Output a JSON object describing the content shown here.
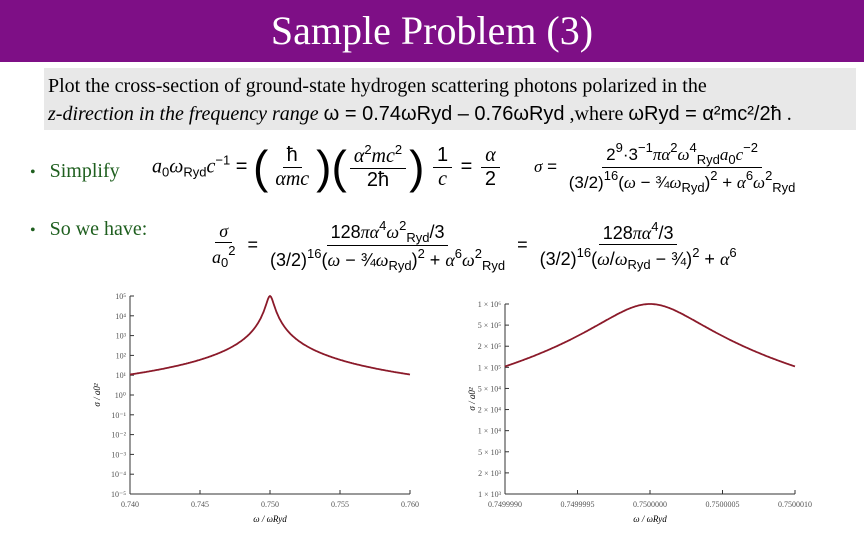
{
  "title": "Sample Problem (3)",
  "intro": {
    "line1": "Plot the cross-section of ground-state hydrogen scattering photons polarized in the",
    "line2_a": "z-direction in the frequency range",
    "range_eq": "ω = 0.74ωRyd – 0.76ωRyd",
    "line2_b": ",where",
    "where_eq": "ωRyd = α²mc²/2ħ",
    "period": "."
  },
  "bullets": [
    {
      "text": "Simplify"
    },
    {
      "text": "So we have:"
    }
  ],
  "equations": {
    "simplify": "a0ωRyd c⁻¹ = (ħ/αmc)(α²mc²/2ħ)(1/c) = α/2",
    "sigma_full": "σ = 2⁹·3⁻¹πα²ω⁴Ryd a0 c⁻² / [(3/2)¹⁶(ω − ¾ωRyd)² + α⁶ω²Ryd]",
    "sigma_ratio_1": "σ/a0² = 128πα⁴ω²Ryd/3 / [(3/2)¹⁶(ω − ¾ωRyd)² + α⁶ω²Ryd]",
    "sigma_ratio_2": "= 128πα⁴/3 / [(3/2)¹⁶(ω/ωRyd − ¾)² + α⁶]"
  },
  "chart_data": [
    {
      "type": "line",
      "scale_y": "log",
      "xlim": [
        0.74,
        0.76
      ],
      "ylim": [
        1e-05,
        1000
      ],
      "x_ticks": [
        "0.740",
        "0.745",
        "0.750",
        "0.755",
        "0.760"
      ],
      "y_ticks": [
        "10⁻⁵",
        "10⁻⁴",
        "10⁻³",
        "10⁻²",
        "10⁻¹",
        "10⁰",
        "10¹",
        "10²",
        "10³",
        "10⁴",
        "10⁵"
      ],
      "xlabel": "ω / ωRyd",
      "ylabel": "σ / a0²",
      "peak_x": 0.75,
      "color": "#8b1a2a"
    },
    {
      "type": "line",
      "scale_y": "log",
      "xlim": [
        0.749999,
        0.750001
      ],
      "x_ticks": [
        "0.7499990",
        "0.7499995",
        "0.7500000",
        "0.7500005",
        "0.7500010"
      ],
      "y_ticks": [
        "1 × 10³",
        "2 × 10³",
        "5 × 10³",
        "1 × 10⁴",
        "2 × 10⁴",
        "5 × 10⁴",
        "1 × 10⁵",
        "2 × 10⁵",
        "5 × 10⁵",
        "1 × 10⁶"
      ],
      "xlabel": "ω / ωRyd",
      "ylabel": "σ / a0²",
      "peak_x": 0.75,
      "color": "#8b1a2a"
    }
  ]
}
